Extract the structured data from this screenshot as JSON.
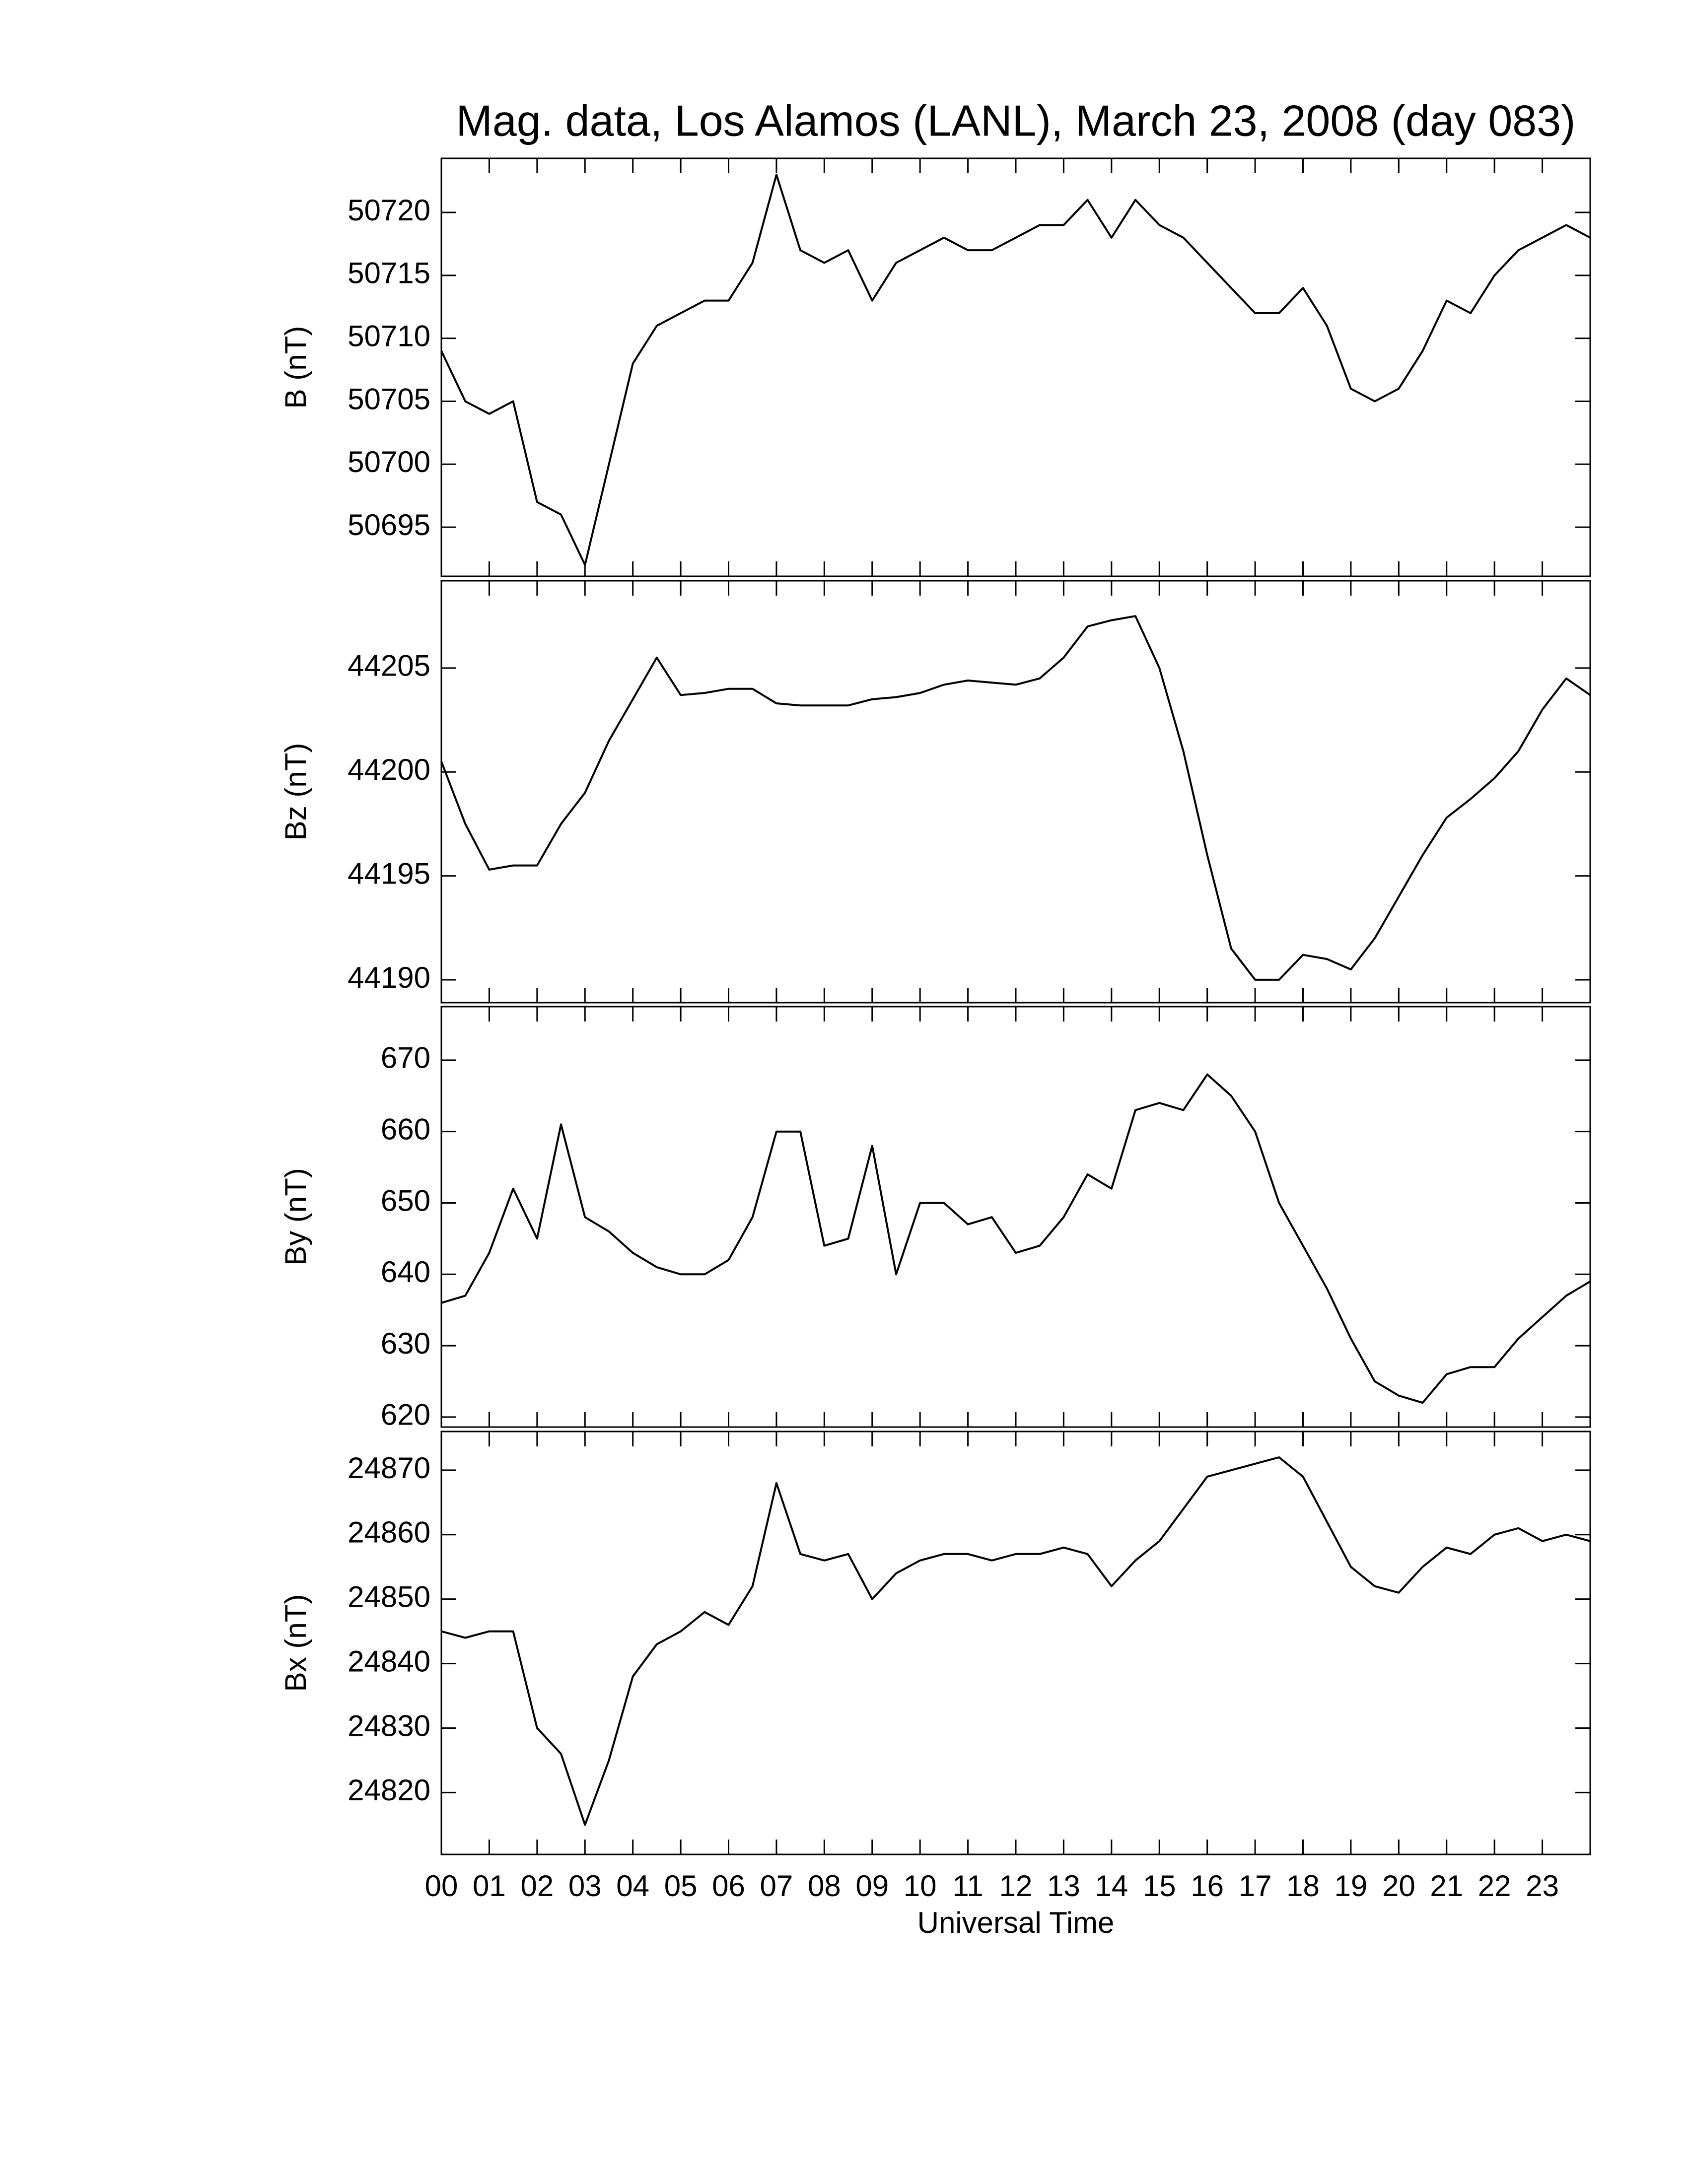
{
  "chart_data": [
    {
      "type": "line",
      "title": "Mag. data, Los Alamos (LANL), March 23, 2008 (day 083)",
      "ylabel": "B (nT)",
      "color": "#000000",
      "x": [
        0,
        0.5,
        1,
        1.5,
        2,
        2.5,
        3,
        3.5,
        4,
        4.5,
        5,
        5.5,
        6,
        6.5,
        7,
        7.5,
        8,
        8.5,
        9,
        9.5,
        10,
        10.5,
        11,
        11.5,
        12,
        12.5,
        13,
        13.5,
        14,
        14.5,
        15,
        15.5,
        16,
        16.5,
        17,
        17.5,
        18,
        18.5,
        19,
        19.5,
        20,
        20.5,
        21,
        21.5,
        22,
        22.5,
        23,
        23.5,
        24
      ],
      "values": [
        50709,
        50705,
        50704,
        50705,
        50697,
        50696,
        50692,
        50700,
        50708,
        50711,
        50712,
        50713,
        50713,
        50716,
        50723,
        50717,
        50716,
        50717,
        50713,
        50716,
        50717,
        50718,
        50717,
        50717,
        50718,
        50719,
        50719,
        50721,
        50718,
        50721,
        50719,
        50718,
        50716,
        50714,
        50712,
        50712,
        50714,
        50711,
        50706,
        50705,
        50706,
        50709,
        50713,
        50712,
        50715,
        50717,
        50718,
        50719,
        50718
      ],
      "xlim": [
        0,
        24
      ],
      "ylim": [
        50691.1,
        50724.3
      ],
      "yticks": [
        50695,
        50700,
        50705,
        50710,
        50715,
        50720
      ]
    },
    {
      "type": "line",
      "ylabel": "Bz (nT)",
      "color": "#000000",
      "x": [
        0,
        0.5,
        1,
        1.5,
        2,
        2.5,
        3,
        3.5,
        4,
        4.5,
        5,
        5.5,
        6,
        6.5,
        7,
        7.5,
        8,
        8.5,
        9,
        9.5,
        10,
        10.5,
        11,
        11.5,
        12,
        12.5,
        13,
        13.5,
        14,
        14.5,
        15,
        15.5,
        16,
        16.5,
        17,
        17.5,
        18,
        18.5,
        19,
        19.5,
        20,
        20.5,
        21,
        21.5,
        22,
        22.5,
        23,
        23.5,
        24
      ],
      "values": [
        44200.5,
        44197.5,
        44195.3,
        44195.5,
        44195.5,
        44197.5,
        44199,
        44201.5,
        44203.5,
        44205.5,
        44203.7,
        44203.8,
        44204,
        44204,
        44203.3,
        44203.2,
        44203.2,
        44203.2,
        44203.5,
        44203.6,
        44203.8,
        44204.2,
        44204.4,
        44204.3,
        44204.2,
        44204.5,
        44205.5,
        44207,
        44207.3,
        44207.5,
        44205,
        44201,
        44196,
        44191.5,
        44190,
        44190,
        44191.2,
        44191,
        44190.5,
        44192,
        44194,
        44196,
        44197.8,
        44198.7,
        44199.7,
        44201,
        44203,
        44204.5,
        44203.7
      ],
      "xlim": [
        0,
        24
      ],
      "ylim": [
        44188.9,
        44209.2
      ],
      "yticks": [
        44190,
        44195,
        44200,
        44205
      ]
    },
    {
      "type": "line",
      "ylabel": "By (nT)",
      "color": "#000000",
      "x": [
        0,
        0.5,
        1,
        1.5,
        2,
        2.5,
        3,
        3.5,
        4,
        4.5,
        5,
        5.5,
        6,
        6.5,
        7,
        7.5,
        8,
        8.5,
        9,
        9.5,
        10,
        10.5,
        11,
        11.5,
        12,
        12.5,
        13,
        13.5,
        14,
        14.5,
        15,
        15.5,
        16,
        16.5,
        17,
        17.5,
        18,
        18.5,
        19,
        19.5,
        20,
        20.5,
        21,
        21.5,
        22,
        22.5,
        23,
        23.5,
        24
      ],
      "values": [
        636,
        637,
        643,
        652,
        645,
        661,
        648,
        646,
        643,
        641,
        640,
        640,
        642,
        648,
        660,
        660,
        644,
        645,
        658,
        640,
        650,
        650,
        647,
        648,
        643,
        644,
        648,
        654,
        652,
        663,
        664,
        663,
        668,
        665,
        660,
        650,
        644,
        638,
        631,
        625,
        623,
        622,
        626,
        627,
        627,
        631,
        634,
        637,
        639
      ],
      "xlim": [
        0,
        24
      ],
      "ylim": [
        618.6,
        677.5
      ],
      "yticks": [
        620,
        630,
        640,
        650,
        660,
        670
      ]
    },
    {
      "type": "line",
      "ylabel": "Bx (nT)",
      "xlabel": "Universal Time",
      "color": "#000000",
      "x": [
        0,
        0.5,
        1,
        1.5,
        2,
        2.5,
        3,
        3.5,
        4,
        4.5,
        5,
        5.5,
        6,
        6.5,
        7,
        7.5,
        8,
        8.5,
        9,
        9.5,
        10,
        10.5,
        11,
        11.5,
        12,
        12.5,
        13,
        13.5,
        14,
        14.5,
        15,
        15.5,
        16,
        16.5,
        17,
        17.5,
        18,
        18.5,
        19,
        19.5,
        20,
        20.5,
        21,
        21.5,
        22,
        22.5,
        23,
        23.5,
        24
      ],
      "values": [
        24845,
        24844,
        24845,
        24845,
        24830,
        24826,
        24815,
        24825,
        24838,
        24843,
        24845,
        24848,
        24846,
        24852,
        24868,
        24857,
        24856,
        24857,
        24850,
        24854,
        24856,
        24857,
        24857,
        24856,
        24857,
        24857,
        24858,
        24857,
        24852,
        24856,
        24859,
        24864,
        24869,
        24870,
        24871,
        24872,
        24869,
        24862,
        24855,
        24852,
        24851,
        24855,
        24858,
        24857,
        24860,
        24861,
        24859,
        24860,
        24859
      ],
      "xlim": [
        0,
        24
      ],
      "ylim": [
        24810.4,
        24876
      ],
      "yticks": [
        24820,
        24830,
        24840,
        24850,
        24860,
        24870
      ],
      "xticks": [
        {
          "value": 0,
          "label": "00"
        },
        {
          "value": 1,
          "label": "01"
        },
        {
          "value": 2,
          "label": "02"
        },
        {
          "value": 3,
          "label": "03"
        },
        {
          "value": 4,
          "label": "04"
        },
        {
          "value": 5,
          "label": "05"
        },
        {
          "value": 6,
          "label": "06"
        },
        {
          "value": 7,
          "label": "07"
        },
        {
          "value": 8,
          "label": "08"
        },
        {
          "value": 9,
          "label": "09"
        },
        {
          "value": 10,
          "label": "10"
        },
        {
          "value": 11,
          "label": "11"
        },
        {
          "value": 12,
          "label": "12"
        },
        {
          "value": 13,
          "label": "13"
        },
        {
          "value": 14,
          "label": "14"
        },
        {
          "value": 15,
          "label": "15"
        },
        {
          "value": 16,
          "label": "16"
        },
        {
          "value": 17,
          "label": "17"
        },
        {
          "value": 18,
          "label": "18"
        },
        {
          "value": 19,
          "label": "19"
        },
        {
          "value": 20,
          "label": "20"
        },
        {
          "value": 21,
          "label": "21"
        },
        {
          "value": 22,
          "label": "22"
        },
        {
          "value": 23,
          "label": "23"
        }
      ]
    }
  ]
}
